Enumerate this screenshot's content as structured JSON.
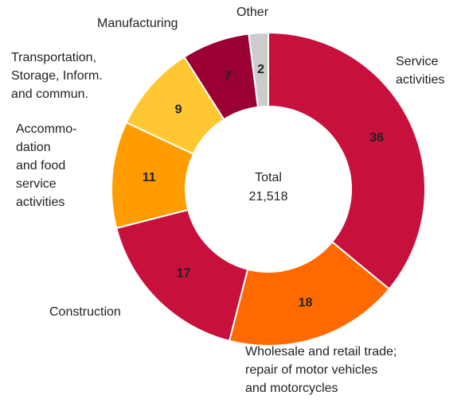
{
  "chart_data": {
    "type": "donut",
    "center_label": "Total",
    "total": "21,518",
    "categories": [
      "Service\nactivities",
      "Wholesale and retail trade;\nrepair of motor vehicles\nand motorcycles",
      "Construction",
      "Accommo-\ndation\nand food\nservice\nactivities",
      "Transportation,\nStorage, Inform.\nand commun.",
      "Manufacturing",
      "Other"
    ],
    "values": [
      36,
      18,
      17,
      11,
      9,
      7,
      2
    ],
    "colors": [
      "#c8103c",
      "#ff6a00",
      "#c8103c",
      "#ff9c00",
      "#ffc832",
      "#9a0032",
      "#cccccc"
    ]
  }
}
